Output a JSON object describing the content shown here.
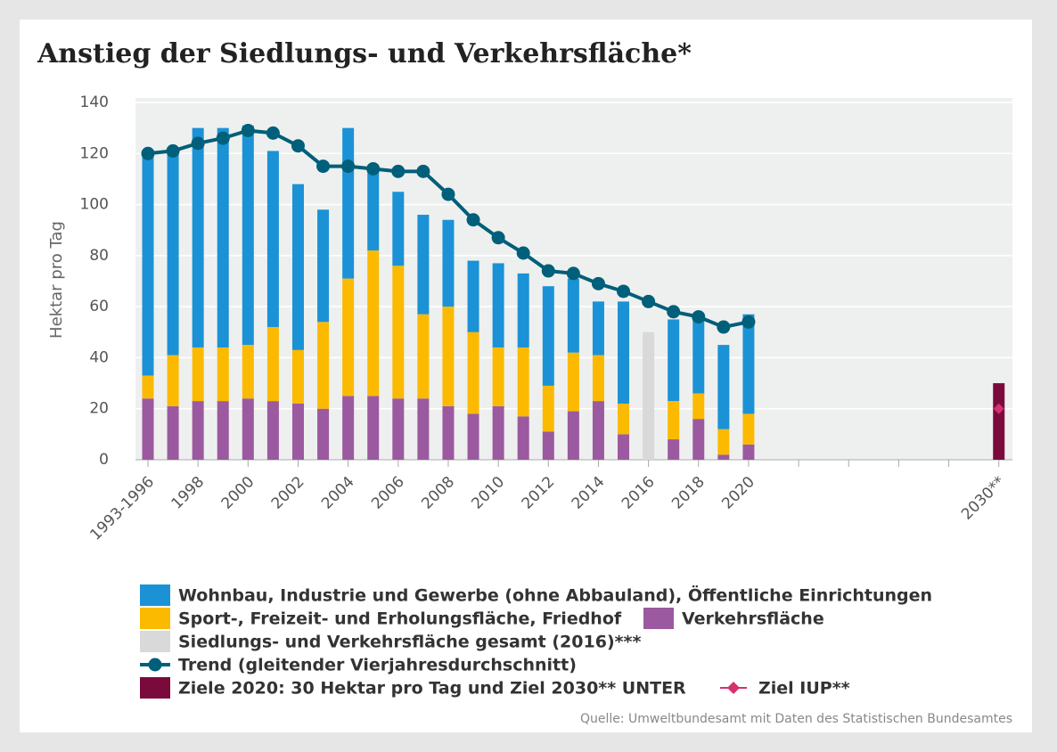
{
  "chart_data": {
    "type": "bar",
    "title": "Anstieg der Siedlungs- und Verkehrsfläche*",
    "y_label": "Hektar pro Tag",
    "source": "Quelle: Umweltbundesamt mit Daten des Statistischen Bundesamtes",
    "categories": [
      "1993-1996",
      null,
      "1998",
      null,
      "2000",
      null,
      "2002",
      null,
      "2004",
      null,
      "2006",
      null,
      "2008",
      null,
      "2010",
      null,
      "2012",
      null,
      "2014",
      null,
      "2016",
      null,
      "2018",
      null,
      "2020",
      null,
      null,
      null,
      null,
      null,
      null,
      null,
      null,
      null,
      "2030**"
    ],
    "ylim": [
      0,
      140
    ],
    "yticks": [
      0,
      20,
      40,
      60,
      80,
      100,
      120,
      140
    ],
    "grid": true,
    "series": [
      {
        "name": "Verkehrsfläche",
        "color": "#9b5a9f",
        "kind": "stack",
        "values": [
          24,
          21,
          23,
          23,
          24,
          23,
          22,
          20,
          25,
          25,
          24,
          24,
          21,
          18,
          21,
          17,
          11,
          19,
          23,
          10,
          null,
          8,
          16,
          2,
          6,
          null,
          null,
          null,
          null,
          null,
          null,
          null,
          null,
          null,
          null
        ]
      },
      {
        "name": "Sport-, Freizeit- und Erholungsfläche, Friedhof",
        "color": "#fbba00",
        "kind": "stack",
        "values": [
          9,
          20,
          21,
          21,
          21,
          29,
          21,
          34,
          46,
          57,
          52,
          33,
          39,
          32,
          23,
          27,
          18,
          23,
          18,
          12,
          null,
          15,
          10,
          10,
          12,
          null,
          null,
          null,
          null,
          null,
          null,
          null,
          null,
          null,
          null
        ]
      },
      {
        "name": "Wohnbau, Industrie und Gewerbe (ohne Abbauland), Öffentliche Einrichtungen",
        "color": "#1b92d6",
        "kind": "stack",
        "values": [
          87,
          80,
          86,
          86,
          86,
          69,
          65,
          44,
          59,
          32,
          29,
          39,
          34,
          28,
          33,
          29,
          39,
          29,
          21,
          40,
          null,
          32,
          30,
          33,
          39,
          null,
          null,
          null,
          null,
          null,
          null,
          null,
          null,
          null,
          null
        ]
      },
      {
        "name": "Siedlungs- und Verkehrsfläche gesamt (2016)***",
        "color": "#d9d9d9",
        "kind": "bar",
        "values": [
          null,
          null,
          null,
          null,
          null,
          null,
          null,
          null,
          null,
          null,
          null,
          null,
          null,
          null,
          null,
          null,
          null,
          null,
          null,
          null,
          50,
          null,
          null,
          null,
          null,
          null,
          null,
          null,
          null,
          null,
          null,
          null,
          null,
          null,
          null
        ]
      },
      {
        "name": "Trend (gleitender Vierjahresdurchschnitt)",
        "color": "#005f7a",
        "kind": "line",
        "values": [
          120,
          121,
          124,
          126,
          129,
          128,
          123,
          115,
          115,
          114,
          113,
          113,
          104,
          94,
          87,
          81,
          74,
          73,
          69,
          66,
          62,
          58,
          56,
          52,
          54,
          null,
          null,
          null,
          null,
          null,
          null,
          null,
          null,
          null,
          null
        ]
      },
      {
        "name": "Ziele 2020: 30 Hektar pro Tag und Ziel 2030** UNTER",
        "color": "#7b0a3c",
        "kind": "bar",
        "values": [
          null,
          null,
          null,
          null,
          null,
          null,
          null,
          null,
          null,
          null,
          null,
          null,
          null,
          null,
          null,
          null,
          null,
          null,
          null,
          null,
          null,
          null,
          null,
          null,
          null,
          null,
          null,
          null,
          null,
          null,
          null,
          null,
          null,
          null,
          30
        ]
      },
      {
        "name": "Ziel IUP**",
        "color": "#d4316e",
        "kind": "diamond",
        "values": [
          null,
          null,
          null,
          null,
          null,
          null,
          null,
          null,
          null,
          null,
          null,
          null,
          null,
          null,
          null,
          null,
          null,
          null,
          null,
          null,
          null,
          null,
          null,
          null,
          null,
          null,
          null,
          null,
          null,
          null,
          null,
          null,
          null,
          null,
          20
        ]
      }
    ]
  }
}
